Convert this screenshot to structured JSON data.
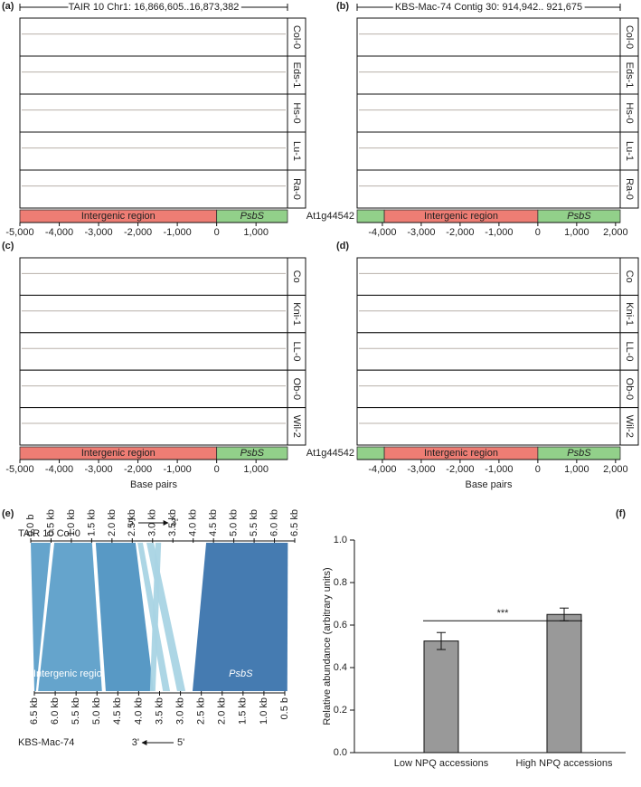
{
  "chart_data": [
    {
      "type": "track",
      "panel": "(a)",
      "title": "TAIR 10 Chr1: 16,866,605..16,873,382",
      "tracks": [
        "Col-0",
        "Eds-1",
        "Hs-0",
        "Lu-1",
        "Ra-0"
      ],
      "regions": [
        {
          "label": "Intergenic region",
          "start": -5000,
          "end": 0,
          "color": "#ee7d74"
        },
        {
          "label": "PsbS",
          "start": 0,
          "end": 1800,
          "color": "#92d08a",
          "italic": true
        }
      ],
      "xlim": [
        -5000,
        1800
      ],
      "xticks": [
        {
          "value": -5000,
          "label": "-5,000"
        },
        {
          "value": -4000,
          "label": "-4,000"
        },
        {
          "value": -3000,
          "label": "-3,000"
        },
        {
          "value": -2000,
          "label": "-2,000"
        },
        {
          "value": -1000,
          "label": "-1,000"
        },
        0,
        {
          "value": 1000,
          "label": "1,000"
        }
      ]
    },
    {
      "type": "track",
      "panel": "(b)",
      "title": "KBS-Mac-74 Contig 30: 914,942.. 921,675",
      "tracks": [
        "Col-0",
        "Eds-1",
        "Hs-0",
        "Lu-1",
        "Ra-0"
      ],
      "regions": [
        {
          "label": "At1g44542",
          "start": -4650,
          "end": -3950,
          "color": "#92d08a"
        },
        {
          "label": "Intergenic region",
          "start": -3950,
          "end": 0,
          "color": "#ee7d74"
        },
        {
          "label": "PsbS",
          "start": 0,
          "end": 2120,
          "color": "#92d08a",
          "italic": true
        }
      ],
      "xlim": [
        -4650,
        2120
      ],
      "xticks": [
        {
          "value": -4000,
          "label": "-4,000"
        },
        {
          "value": -3000,
          "label": "-3,000"
        },
        {
          "value": -2000,
          "label": "-2,000"
        },
        {
          "value": -1000,
          "label": "-1,000"
        },
        0,
        {
          "value": 1000,
          "label": "1,000"
        },
        {
          "value": 2000,
          "label": "2,000"
        }
      ]
    },
    {
      "type": "track",
      "panel": "(c)",
      "xlabel": "Base pairs",
      "tracks": [
        "Co",
        "Kni-1",
        "LL-0",
        "Ob-0",
        "Wil-2"
      ],
      "regions": [
        {
          "label": "Intergenic region",
          "start": -5000,
          "end": 0,
          "color": "#ee7d74"
        },
        {
          "label": "PsbS",
          "start": 0,
          "end": 1800,
          "color": "#92d08a",
          "italic": true
        }
      ],
      "xlim": [
        -5000,
        1800
      ],
      "xticks": [
        {
          "value": -5000,
          "label": "-5,000"
        },
        {
          "value": -4000,
          "label": "-4,000"
        },
        {
          "value": -3000,
          "label": "-3,000"
        },
        {
          "value": -2000,
          "label": "-2,000"
        },
        {
          "value": -1000,
          "label": "-1,000"
        },
        0,
        {
          "value": 1000,
          "label": "1,000"
        }
      ]
    },
    {
      "type": "track",
      "panel": "(d)",
      "xlabel": "Base pairs",
      "tracks": [
        "Co",
        "Kni-1",
        "LL-0",
        "Ob-0",
        "Wil-2"
      ],
      "regions": [
        {
          "label": "At1g44542",
          "start": -4650,
          "end": -3950,
          "color": "#92d08a"
        },
        {
          "label": "Intergenic region",
          "start": -3950,
          "end": 0,
          "color": "#ee7d74"
        },
        {
          "label": "PsbS",
          "start": 0,
          "end": 2120,
          "color": "#92d08a",
          "italic": true
        }
      ],
      "xlim": [
        -4650,
        2120
      ],
      "xticks": [
        {
          "value": -4000,
          "label": "-4,000"
        },
        {
          "value": -3000,
          "label": "-3,000"
        },
        {
          "value": -2000,
          "label": "-2,000"
        },
        {
          "value": -1000,
          "label": "-1,000"
        },
        0,
        {
          "value": 1000,
          "label": "1,000"
        },
        {
          "value": 2000,
          "label": "2,000"
        }
      ]
    },
    {
      "type": "synteny",
      "panel": "(e)",
      "top_label": "TAIR 10 Col-0",
      "top_strand": [
        "5'",
        "3'"
      ],
      "bottom_label": "KBS-Mac-74",
      "bottom_strand": [
        "3'",
        "5'"
      ],
      "top_lim": [
        0,
        6.5
      ],
      "top_ticks": [
        {
          "value": 0,
          "label": "0.0 b"
        },
        {
          "value": 0.5,
          "label": "0.5 kb"
        },
        {
          "value": 1,
          "label": "1.0 kb"
        },
        {
          "value": 1.5,
          "label": "1.5 kb"
        },
        {
          "value": 2,
          "label": "2.0 kb"
        },
        {
          "value": 2.5,
          "label": "2.5 kb"
        },
        {
          "value": 3,
          "label": "3.0 kb"
        },
        {
          "value": 3.5,
          "label": "3.5 kb"
        },
        {
          "value": 4,
          "label": "4.0 kb"
        },
        {
          "value": 4.5,
          "label": "4.5 kb"
        },
        {
          "value": 5,
          "label": "5.0 kb"
        },
        {
          "value": 5.5,
          "label": "5.5 kb"
        },
        {
          "value": 6,
          "label": "6.0 kb"
        },
        {
          "value": 6.5,
          "label": "6.5 kb"
        }
      ],
      "bottom_lim": [
        6.5,
        0.5
      ],
      "bottom_ticks": [
        {
          "value": 6.5,
          "label": "6.5 kb"
        },
        {
          "value": 6,
          "label": "6.0 kb"
        },
        {
          "value": 5.5,
          "label": "5.5 kb"
        },
        {
          "value": 5,
          "label": "5.0 kb"
        },
        {
          "value": 4.5,
          "label": "4.5 kb"
        },
        {
          "value": 4,
          "label": "4.0 kb"
        },
        {
          "value": 3.5,
          "label": "3.5 kb"
        },
        {
          "value": 3,
          "label": "3.0 kb"
        },
        {
          "value": 2.5,
          "label": "2.5 kb"
        },
        {
          "value": 2,
          "label": "2.0 kb"
        },
        {
          "value": 1.5,
          "label": "1.5 kb"
        },
        {
          "value": 1,
          "label": "1.0 kb"
        },
        {
          "value": 0.5,
          "label": "0.5 b"
        }
      ],
      "blocks": [
        {
          "top": [
            0,
            0.49
          ],
          "bottom": [
            6.5,
            6.46
          ],
          "color": "#5d9fc9"
        },
        {
          "top": [
            0.58,
            1.51
          ],
          "bottom": [
            6.41,
            4.88
          ],
          "color": "#5d9fc9",
          "label": "Intergenic region"
        },
        {
          "top": [
            1.6,
            2.58
          ],
          "bottom": [
            4.79,
            3.64
          ],
          "color": "#4f93c2"
        },
        {
          "top": [
            2.63,
            2.76
          ],
          "bottom": [
            3.42,
            3.25
          ],
          "color": "#a9d4e4"
        },
        {
          "top": [
            2.85,
            3.03
          ],
          "bottom": [
            3.08,
            2.88
          ],
          "color": "#a9d4e4"
        },
        {
          "top": [
            3.07,
            3.21
          ],
          "bottom": [
            3.73,
            3.6
          ],
          "color": "#a9d4e4"
        },
        {
          "top": [
            4.32,
            6.33
          ],
          "bottom": [
            2.71,
            0.44
          ],
          "color": "#3b74ad",
          "label": "PsbS",
          "italic": true
        }
      ]
    },
    {
      "type": "bar",
      "panel": "(f)",
      "ylabel": "Relative abundance (arbitrary units)",
      "categories": [
        "Low NPQ accessions",
        "High NPQ accessions"
      ],
      "values": [
        0.525,
        0.65
      ],
      "errors": [
        0.04,
        0.03
      ],
      "color": "#999999",
      "ylim": [
        0,
        1
      ],
      "yticks": [
        {
          "value": 0,
          "label": "0.0"
        },
        0.2,
        0.4,
        0.6,
        0.8,
        {
          "value": 1,
          "label": "1.0"
        }
      ],
      "significance": {
        "label": "***",
        "y": 0.62
      }
    }
  ]
}
